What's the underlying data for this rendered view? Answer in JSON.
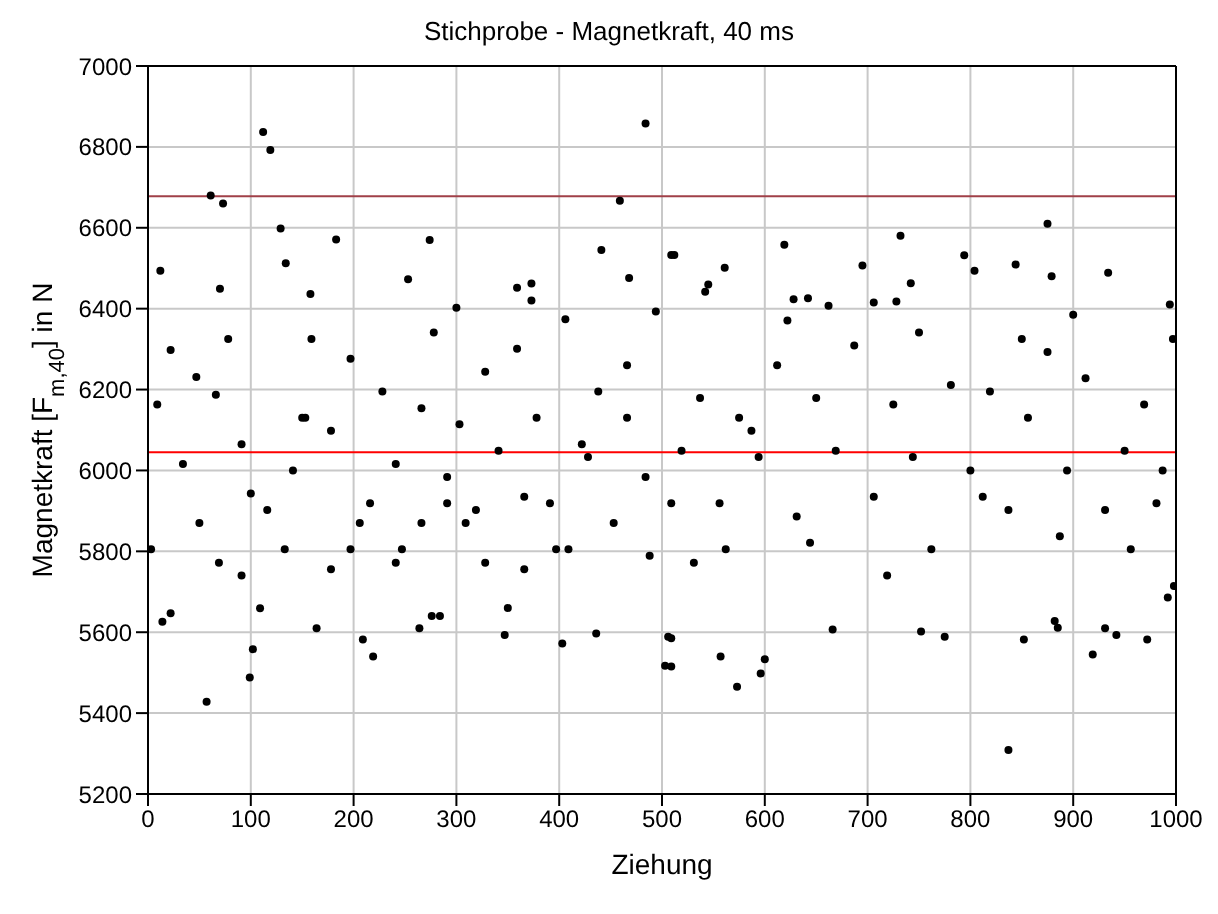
{
  "chart_data": {
    "type": "scatter",
    "title": "Stichprobe - Magnetkraft, 40 ms",
    "xlabel": "Ziehung",
    "ylabel": "Magnetkraft [F$_{m,40}$] in N",
    "xlim": [
      0,
      1000
    ],
    "xticks": [
      0,
      100,
      200,
      300,
      400,
      500,
      600,
      700,
      800,
      900,
      1000
    ],
    "ylim": [
      5200,
      7000
    ],
    "yticks": [
      5200,
      5400,
      5600,
      5800,
      6000,
      6200,
      6400,
      6600,
      6800,
      7000
    ],
    "grid": true,
    "marker": "circle",
    "legend": false,
    "ref_lines": [
      {
        "axis": "y",
        "value": 6045,
        "color": "#ff0000"
      },
      {
        "axis": "y",
        "value": 6678,
        "color": "#a04048"
      }
    ],
    "series": [
      {
        "color": "#000000",
        "x": [
          112,
          119,
          61,
          73,
          129,
          134,
          12,
          183,
          274,
          484,
          459,
          441,
          468,
          253,
          70,
          158,
          373,
          373,
          359,
          57,
          99,
          102,
          219,
          209,
          164,
          264,
          284,
          276,
          14,
          22,
          347,
          350,
          403,
          436,
          503,
          506,
          509,
          494,
          300,
          875,
          732,
          619,
          794,
          695,
          561,
          512,
          844,
          804,
          934,
          879,
          545,
          542,
          742,
          837,
          557,
          573,
          596,
          600,
          509,
          509,
          666,
          752,
          775,
          852,
          919,
          972,
          882,
          885,
          931,
          942,
          998,
          992,
          994,
          997,
          622,
          628,
          642,
          662,
          706,
          728,
          900,
          22,
          47,
          66,
          78,
          91,
          100,
          116,
          133,
          150,
          159,
          178,
          197,
          206,
          228,
          241,
          247,
          266,
          278,
          291,
          303,
          319,
          328,
          341,
          359,
          366,
          378,
          397,
          406,
          422,
          438,
          453,
          466,
          484,
          3,
          9,
          34,
          50,
          69,
          91,
          109,
          141,
          153,
          178,
          197,
          216,
          241,
          266,
          291,
          309,
          328,
          366,
          391,
          409,
          428,
          466,
          488,
          519,
          537,
          556,
          575,
          594,
          612,
          631,
          650,
          669,
          687,
          706,
          725,
          744,
          762,
          781,
          800,
          819,
          837,
          856,
          875,
          894,
          912,
          931,
          950,
          969,
          987,
          531,
          562,
          587,
          644,
          719,
          812,
          887,
          956,
          981,
          509,
          750,
          850
        ],
        "values": [
          6837,
          6792,
          6680,
          6660,
          6598,
          6512,
          6494,
          6571,
          6570,
          6858,
          6667,
          6545,
          6476,
          6473,
          6449,
          6436,
          6462,
          6420,
          6452,
          5428,
          5488,
          5558,
          5540,
          5582,
          5610,
          5610,
          5640,
          5640,
          5626,
          5647,
          5593,
          5660,
          5572,
          5597,
          5517,
          5589,
          6533,
          6393,
          6402,
          6610,
          6580,
          6558,
          6532,
          6507,
          6501,
          6533,
          6509,
          6494,
          6489,
          6480,
          6460,
          6442,
          6463,
          5309,
          5540,
          5465,
          5498,
          5533,
          5515,
          5585,
          5607,
          5602,
          5589,
          5582,
          5545,
          5582,
          5628,
          5611,
          5610,
          5593,
          5714,
          5686,
          6410,
          6325,
          6371,
          6423,
          6426,
          6407,
          6415,
          6418,
          6385,
          6298,
          6231,
          6187,
          6325,
          6065,
          5943,
          5902,
          5805,
          6130,
          6325,
          6098,
          6276,
          5870,
          6195,
          6016,
          5805,
          6154,
          6341,
          5984,
          6114,
          5902,
          6244,
          6049,
          6301,
          5935,
          6130,
          5805,
          6374,
          6065,
          6195,
          5870,
          6260,
          5984,
          5805,
          6163,
          6016,
          5870,
          5772,
          5740,
          5659,
          6000,
          6130,
          5756,
          5805,
          5919,
          5772,
          5870,
          5919,
          5870,
          5772,
          5756,
          5919,
          5805,
          6033,
          6130,
          5789,
          6049,
          6179,
          5919,
          6130,
          6033,
          6260,
          5886,
          6179,
          6049,
          6309,
          5935,
          6163,
          6033,
          5805,
          6211,
          6000,
          6195,
          5902,
          6130,
          6293,
          6000,
          6228,
          5902,
          6049,
          6163,
          6000,
          5772,
          5805,
          6098,
          5821,
          5740,
          5935,
          5837,
          5805,
          5919,
          5919,
          6341,
          6325
        ]
      }
    ]
  }
}
